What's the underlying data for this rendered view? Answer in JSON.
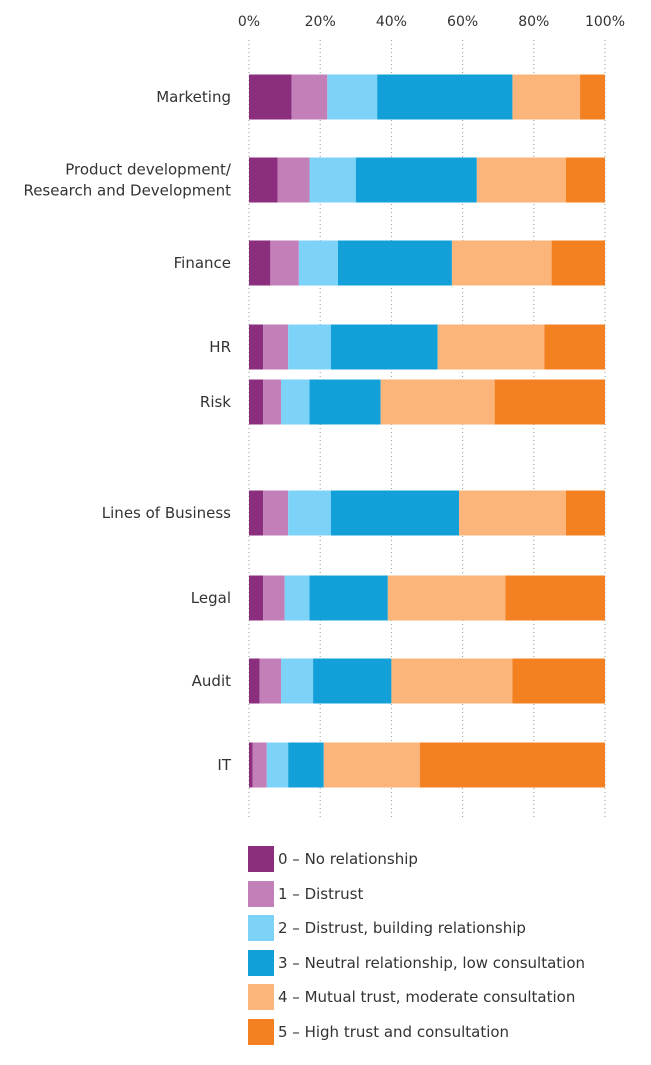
{
  "chart_data": {
    "type": "bar",
    "orientation": "horizontal",
    "stacked": true,
    "xlim": [
      0,
      100
    ],
    "x_ticks": [
      "0%",
      "20%",
      "40%",
      "60%",
      "80%",
      "100%"
    ],
    "grid": true,
    "legend_position": "bottom",
    "categories": [
      "Marketing",
      [
        "Product development/",
        "Research and Development"
      ],
      "Finance",
      "HR",
      "Risk",
      "Lines of Business",
      "Legal",
      "Audit",
      "IT"
    ],
    "series": [
      {
        "name": "0 – No relationship",
        "color": "#8b2e7e",
        "values": [
          12,
          8,
          6,
          4,
          4,
          4,
          4,
          3,
          1
        ]
      },
      {
        "name": "1 – Distrust",
        "color": "#c27fb8",
        "values": [
          10,
          9,
          8,
          7,
          5,
          7,
          6,
          6,
          4
        ]
      },
      {
        "name": "2 – Distrust, building relationship",
        "color": "#7dd2f7",
        "values": [
          14,
          13,
          11,
          12,
          8,
          12,
          7,
          9,
          6
        ]
      },
      {
        "name": "3 – Neutral relationship, low consultation",
        "color": "#13a0d9",
        "values": [
          38,
          34,
          32,
          30,
          20,
          36,
          22,
          22,
          10
        ]
      },
      {
        "name": "4 – Mutual trust, moderate consultation",
        "color": "#fbb57a",
        "values": [
          19,
          25,
          28,
          30,
          32,
          30,
          33,
          34,
          27
        ]
      },
      {
        "name": "5 – High trust and consultation",
        "color": "#f48121",
        "values": [
          7,
          11,
          15,
          17,
          31,
          11,
          28,
          26,
          52
        ]
      }
    ]
  }
}
